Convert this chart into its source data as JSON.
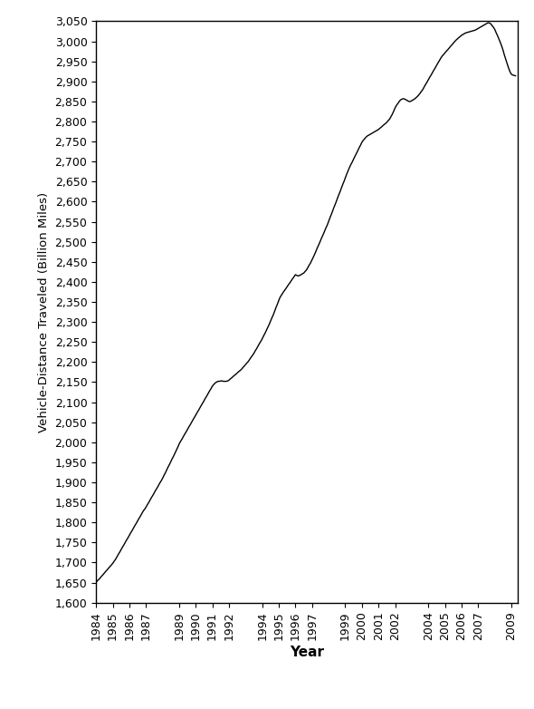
{
  "xlabel": "Year",
  "ylabel": "Vehicle-Distance Traveled (Billion Miles)",
  "line_color": "#000000",
  "background_color": "#ffffff",
  "ylim": [
    1600,
    3050
  ],
  "ytick_step": 50,
  "xtick_labels": [
    "1984",
    "1985",
    "1986",
    "1987",
    "1989",
    "1990",
    "1991",
    "1992",
    "1994",
    "1995",
    "1996",
    "1997",
    "1999",
    "2000",
    "2001",
    "2002",
    "2004",
    "2005",
    "2006",
    "2007",
    "2009"
  ],
  "data_x": [
    1984.0,
    1984.08,
    1984.17,
    1984.25,
    1984.33,
    1984.42,
    1984.5,
    1984.58,
    1984.67,
    1984.75,
    1984.83,
    1984.92,
    1985.0,
    1985.08,
    1985.17,
    1985.25,
    1985.33,
    1985.42,
    1985.5,
    1985.58,
    1985.67,
    1985.75,
    1985.83,
    1985.92,
    1986.0,
    1986.08,
    1986.17,
    1986.25,
    1986.33,
    1986.42,
    1986.5,
    1986.58,
    1986.67,
    1986.75,
    1986.83,
    1986.92,
    1987.0,
    1987.08,
    1987.17,
    1987.25,
    1987.33,
    1987.42,
    1987.5,
    1987.58,
    1987.67,
    1987.75,
    1987.83,
    1987.92,
    1988.0,
    1988.08,
    1988.17,
    1988.25,
    1988.33,
    1988.42,
    1988.5,
    1988.58,
    1988.67,
    1988.75,
    1988.83,
    1988.92,
    1989.0,
    1989.08,
    1989.17,
    1989.25,
    1989.33,
    1989.42,
    1989.5,
    1989.58,
    1989.67,
    1989.75,
    1989.83,
    1989.92,
    1990.0,
    1990.08,
    1990.17,
    1990.25,
    1990.33,
    1990.42,
    1990.5,
    1990.58,
    1990.67,
    1990.75,
    1990.83,
    1990.92,
    1991.0,
    1991.08,
    1991.17,
    1991.25,
    1991.33,
    1991.42,
    1991.5,
    1991.58,
    1991.67,
    1991.75,
    1991.83,
    1991.92,
    1992.0,
    1992.08,
    1992.17,
    1992.25,
    1992.33,
    1992.42,
    1992.5,
    1992.58,
    1992.67,
    1992.75,
    1992.83,
    1992.92,
    1993.0,
    1993.08,
    1993.17,
    1993.25,
    1993.33,
    1993.42,
    1993.5,
    1993.58,
    1993.67,
    1993.75,
    1993.83,
    1993.92,
    1994.0,
    1994.08,
    1994.17,
    1994.25,
    1994.33,
    1994.42,
    1994.5,
    1994.58,
    1994.67,
    1994.75,
    1994.83,
    1994.92,
    1995.0,
    1995.08,
    1995.17,
    1995.25,
    1995.33,
    1995.42,
    1995.5,
    1995.58,
    1995.67,
    1995.75,
    1995.83,
    1995.92,
    1996.0,
    1996.08,
    1996.17,
    1996.25,
    1996.33,
    1996.42,
    1996.5,
    1996.58,
    1996.67,
    1996.75,
    1996.83,
    1996.92,
    1997.0,
    1997.08,
    1997.17,
    1997.25,
    1997.33,
    1997.42,
    1997.5,
    1997.58,
    1997.67,
    1997.75,
    1997.83,
    1997.92,
    1998.0,
    1998.08,
    1998.17,
    1998.25,
    1998.33,
    1998.42,
    1998.5,
    1998.58,
    1998.67,
    1998.75,
    1998.83,
    1998.92,
    1999.0,
    1999.08,
    1999.17,
    1999.25,
    1999.33,
    1999.42,
    1999.5,
    1999.58,
    1999.67,
    1999.75,
    1999.83,
    1999.92,
    2000.0,
    2000.08,
    2000.17,
    2000.25,
    2000.33,
    2000.42,
    2000.5,
    2000.58,
    2000.67,
    2000.75,
    2000.83,
    2000.92,
    2001.0,
    2001.08,
    2001.17,
    2001.25,
    2001.33,
    2001.42,
    2001.5,
    2001.58,
    2001.67,
    2001.75,
    2001.83,
    2001.92,
    2002.0,
    2002.08,
    2002.17,
    2002.25,
    2002.33,
    2002.42,
    2002.5,
    2002.58,
    2002.67,
    2002.75,
    2002.83,
    2002.92,
    2003.0,
    2003.08,
    2003.17,
    2003.25,
    2003.33,
    2003.42,
    2003.5,
    2003.58,
    2003.67,
    2003.75,
    2003.83,
    2003.92,
    2004.0,
    2004.08,
    2004.17,
    2004.25,
    2004.33,
    2004.42,
    2004.5,
    2004.58,
    2004.67,
    2004.75,
    2004.83,
    2004.92,
    2005.0,
    2005.08,
    2005.17,
    2005.25,
    2005.33,
    2005.42,
    2005.5,
    2005.58,
    2005.67,
    2005.75,
    2005.83,
    2005.92,
    2006.0,
    2006.08,
    2006.17,
    2006.25,
    2006.33,
    2006.42,
    2006.5,
    2006.58,
    2006.67,
    2006.75,
    2006.83,
    2006.92,
    2007.0,
    2007.08,
    2007.17,
    2007.25,
    2007.33,
    2007.42,
    2007.5,
    2007.58,
    2007.67,
    2007.75,
    2007.83,
    2007.92,
    2008.0,
    2008.08,
    2008.17,
    2008.25,
    2008.33,
    2008.42,
    2008.5,
    2008.58,
    2008.67,
    2008.75,
    2008.83,
    2008.92,
    2009.0,
    2009.08,
    2009.17,
    2009.25
  ],
  "data_y": [
    1650,
    1655,
    1658,
    1662,
    1666,
    1670,
    1674,
    1678,
    1682,
    1686,
    1690,
    1694,
    1698,
    1703,
    1708,
    1714,
    1720,
    1726,
    1732,
    1738,
    1744,
    1750,
    1756,
    1762,
    1768,
    1774,
    1780,
    1786,
    1792,
    1798,
    1804,
    1810,
    1816,
    1822,
    1828,
    1833,
    1838,
    1844,
    1850,
    1856,
    1862,
    1868,
    1874,
    1880,
    1886,
    1892,
    1898,
    1904,
    1910,
    1917,
    1924,
    1931,
    1938,
    1945,
    1952,
    1959,
    1966,
    1973,
    1980,
    1988,
    1996,
    2002,
    2008,
    2014,
    2020,
    2026,
    2032,
    2038,
    2044,
    2050,
    2056,
    2062,
    2068,
    2074,
    2080,
    2086,
    2092,
    2098,
    2104,
    2110,
    2116,
    2122,
    2128,
    2134,
    2140,
    2144,
    2148,
    2150,
    2152,
    2152,
    2153,
    2153,
    2152,
    2152,
    2152,
    2153,
    2155,
    2158,
    2161,
    2164,
    2167,
    2170,
    2173,
    2176,
    2179,
    2182,
    2186,
    2190,
    2194,
    2198,
    2202,
    2207,
    2212,
    2217,
    2222,
    2228,
    2234,
    2240,
    2246,
    2252,
    2258,
    2265,
    2272,
    2279,
    2286,
    2294,
    2302,
    2310,
    2318,
    2327,
    2336,
    2345,
    2354,
    2362,
    2368,
    2373,
    2378,
    2383,
    2388,
    2393,
    2398,
    2403,
    2408,
    2413,
    2418,
    2416,
    2415,
    2416,
    2418,
    2420,
    2422,
    2426,
    2430,
    2436,
    2442,
    2448,
    2455,
    2462,
    2470,
    2478,
    2486,
    2494,
    2502,
    2510,
    2518,
    2526,
    2534,
    2542,
    2551,
    2560,
    2569,
    2578,
    2587,
    2596,
    2605,
    2614,
    2623,
    2632,
    2641,
    2650,
    2659,
    2668,
    2677,
    2685,
    2692,
    2699,
    2706,
    2713,
    2720,
    2727,
    2734,
    2741,
    2748,
    2753,
    2757,
    2761,
    2764,
    2766,
    2768,
    2770,
    2772,
    2774,
    2776,
    2778,
    2780,
    2783,
    2786,
    2789,
    2792,
    2795,
    2798,
    2802,
    2806,
    2812,
    2818,
    2826,
    2834,
    2840,
    2845,
    2850,
    2854,
    2856,
    2857,
    2856,
    2854,
    2852,
    2850,
    2850,
    2852,
    2854,
    2856,
    2859,
    2862,
    2866,
    2870,
    2875,
    2880,
    2886,
    2892,
    2898,
    2904,
    2910,
    2916,
    2922,
    2928,
    2934,
    2940,
    2946,
    2952,
    2958,
    2963,
    2967,
    2971,
    2975,
    2979,
    2983,
    2987,
    2991,
    2995,
    2999,
    3003,
    3006,
    3009,
    3012,
    3015,
    3017,
    3019,
    3021,
    3022,
    3023,
    3024,
    3025,
    3026,
    3027,
    3028,
    3030,
    3032,
    3034,
    3036,
    3038,
    3040,
    3042,
    3044,
    3046,
    3046,
    3044,
    3040,
    3035,
    3030,
    3022,
    3014,
    3006,
    2998,
    2988,
    2978,
    2966,
    2954,
    2944,
    2934,
    2924,
    2918,
    2916,
    2915,
    2914
  ]
}
